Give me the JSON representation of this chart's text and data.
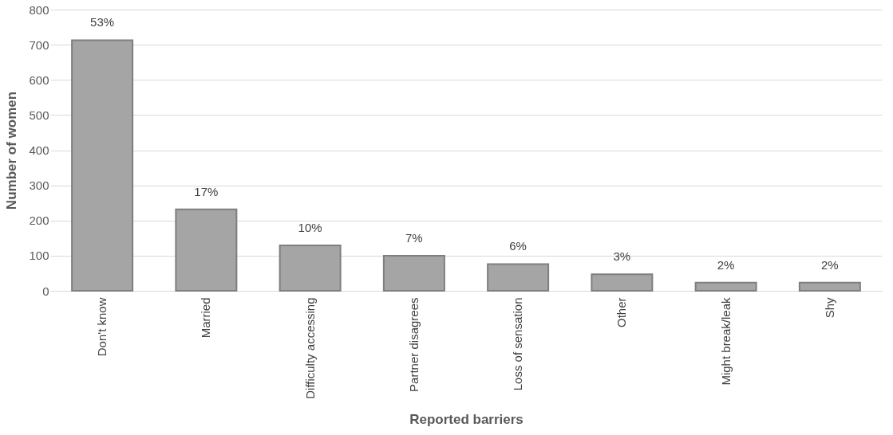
{
  "chart_data": {
    "type": "bar",
    "xlabel": "Reported barriers",
    "ylabel": "Number of women",
    "categories": [
      "Don't know",
      "Married",
      "Difficulty accessing",
      "Partner disagrees",
      "Loss of sensation",
      "Other",
      "Might break/leak",
      "Shy"
    ],
    "values": [
      713,
      232,
      129,
      100,
      76,
      47,
      23,
      23
    ],
    "annotations": [
      {
        "text": "53%",
        "x": "Don't know",
        "y": 713
      },
      {
        "text": "17%",
        "x": "Married",
        "y": 232
      },
      {
        "text": "10%",
        "x": "Difficulty accessing",
        "y": 129
      },
      {
        "text": "7%",
        "x": "Partner disagrees",
        "y": 100
      },
      {
        "text": "6%",
        "x": "Loss of sensation",
        "y": 76
      },
      {
        "text": "3%",
        "x": "Other",
        "y": 47
      },
      {
        "text": "2%",
        "x": "Might break/leak",
        "y": 23
      },
      {
        "text": "2%",
        "x": "Shy",
        "y": 23
      }
    ],
    "color": "#a5a5a5",
    "ylim": [
      0,
      800
    ],
    "yticks": [
      0,
      100,
      200,
      300,
      400,
      500,
      600,
      700,
      800
    ],
    "grid": "y"
  }
}
